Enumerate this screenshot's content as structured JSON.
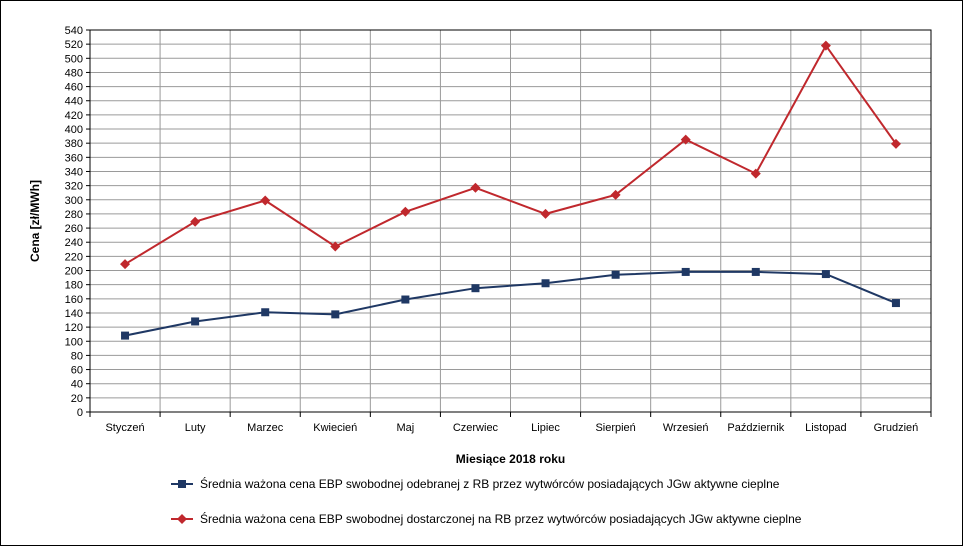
{
  "chart_data": {
    "type": "line",
    "title": "",
    "xlabel": "Miesiące 2018  roku",
    "ylabel": "Cena [zł/MWh]",
    "ylim": [
      0,
      540
    ],
    "ytick_step": 20,
    "grid": true,
    "legend_position": "bottom",
    "categories": [
      "Styczeń",
      "Luty",
      "Marzec",
      "Kwiecień",
      "Maj",
      "Czerwiec",
      "Lipiec",
      "Sierpień",
      "Wrzesień",
      "Październik",
      "Listopad",
      "Grudzień"
    ],
    "series": [
      {
        "name": "Średnia ważona cena EBP swobodnej odebranej z RB przez wytwórców posiadających JGw aktywne cieplne",
        "color": "#1f3864",
        "marker": "square",
        "values": [
          108,
          128,
          141,
          138,
          159,
          175,
          182,
          194,
          198,
          198,
          195,
          154
        ]
      },
      {
        "name": "Średnia ważona cena EBP swobodnej dostarczonej na RB przez wytwórców posiadających JGw aktywne cieplne",
        "color": "#c0282d",
        "marker": "diamond",
        "values": [
          209,
          269,
          299,
          234,
          283,
          317,
          280,
          307,
          385,
          337,
          518,
          379
        ]
      }
    ]
  }
}
